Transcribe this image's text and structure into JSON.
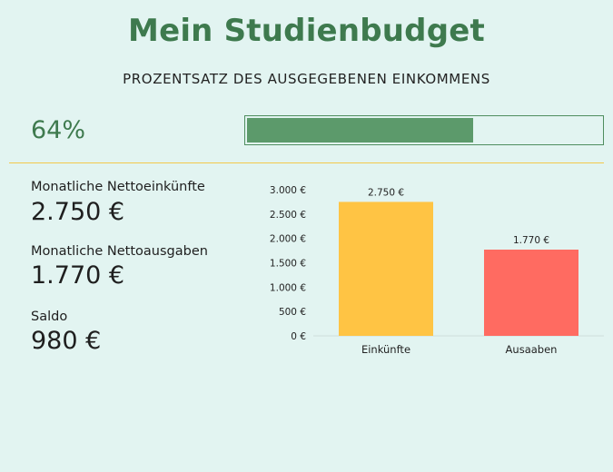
{
  "header": {
    "title": "Mein Studienbudget",
    "subtitle": "PROZENTSATZ DES AUSGEGEBENEN EINKOMMENS"
  },
  "progress": {
    "label": "64%",
    "value": 0.64
  },
  "summary": {
    "income_label": "Monatliche Nettoeinkünfte",
    "income_value": "2.750 €",
    "expenses_label": "Monatliche Nettoausgaben",
    "expenses_value": "1.770 €",
    "balance_label": "Saldo",
    "balance_value": "980 €"
  },
  "colors": {
    "title": "#3e7a4e",
    "progress_fill": "#5c9a6b",
    "divider": "#f2c94c",
    "income_bar": "#ffc444",
    "expenses_bar": "#ff6b61",
    "background": "#e2f4f1"
  },
  "chart_data": {
    "type": "bar",
    "categories": [
      "Einkünfte",
      "Ausaaben"
    ],
    "values": [
      2750,
      1770
    ],
    "data_labels": [
      "2.750 €",
      "1.770 €"
    ],
    "bar_colors": [
      "#ffc444",
      "#ff6b61"
    ],
    "ylim": [
      0,
      3000
    ],
    "yticks": [
      0,
      500,
      1000,
      1500,
      2000,
      2500,
      3000
    ],
    "ytick_labels": [
      "0 €",
      "500 €",
      "1.000 €",
      "1.500 €",
      "2.000 €",
      "2.500 €",
      "3.000 €"
    ],
    "grid": false,
    "legend": "none"
  }
}
